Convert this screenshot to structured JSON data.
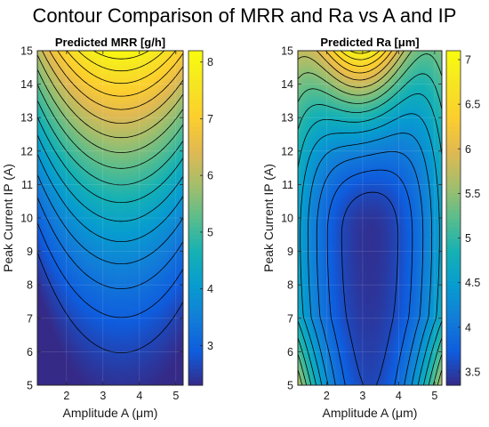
{
  "figure": {
    "title": "Contour Comparison of MRR and Ra vs A and IP"
  },
  "chart_data": [
    {
      "type": "contour",
      "title": "Predicted MRR [g/h]",
      "xlabel": "Amplitude A (μm)",
      "ylabel": "Peak Current IP (A)",
      "xlim": [
        1.2,
        5.2
      ],
      "ylim": [
        5,
        15
      ],
      "x_ticks": [
        "2",
        "3",
        "4",
        "5"
      ],
      "y_ticks": [
        "5",
        "6",
        "7",
        "8",
        "9",
        "10",
        "11",
        "12",
        "13",
        "14",
        "15"
      ],
      "colorbar": {
        "range": [
          2.3,
          8.2
        ],
        "ticks": [
          "3",
          "4",
          "5",
          "6",
          "7",
          "8"
        ]
      },
      "surface": {
        "model": "quadratic",
        "z_at_A_3.5_IP_5": 2.4,
        "z_at_A_3.5_IP_15": 8.1,
        "z_at_A_1.2_IP_15": 6.0,
        "peak_amplitude": 3.5
      },
      "colormap": "parula",
      "contour_color": "#000000"
    },
    {
      "type": "contour",
      "title": "Predicted Ra [μm]",
      "xlabel": "Amplitude A (μm)",
      "ylabel": "Peak Current IP (A)",
      "xlim": [
        1.2,
        5.2
      ],
      "ylim": [
        5,
        15
      ],
      "x_ticks": [
        "2",
        "3",
        "4",
        "5"
      ],
      "y_ticks": [
        "5",
        "6",
        "7",
        "8",
        "9",
        "10",
        "11",
        "12",
        "13",
        "14",
        "15"
      ],
      "colorbar": {
        "range": [
          3.35,
          7.1
        ],
        "ticks": [
          "3.5",
          "4",
          "4.5",
          "5",
          "5.5",
          "6",
          "6.5",
          "7"
        ]
      },
      "surface": {
        "model": "polynomial",
        "minimum_near": [
          3.2,
          7.5
        ],
        "max_at_A_3_IP_15": 7.0
      },
      "colormap": "parula",
      "contour_color": "#000000"
    }
  ]
}
